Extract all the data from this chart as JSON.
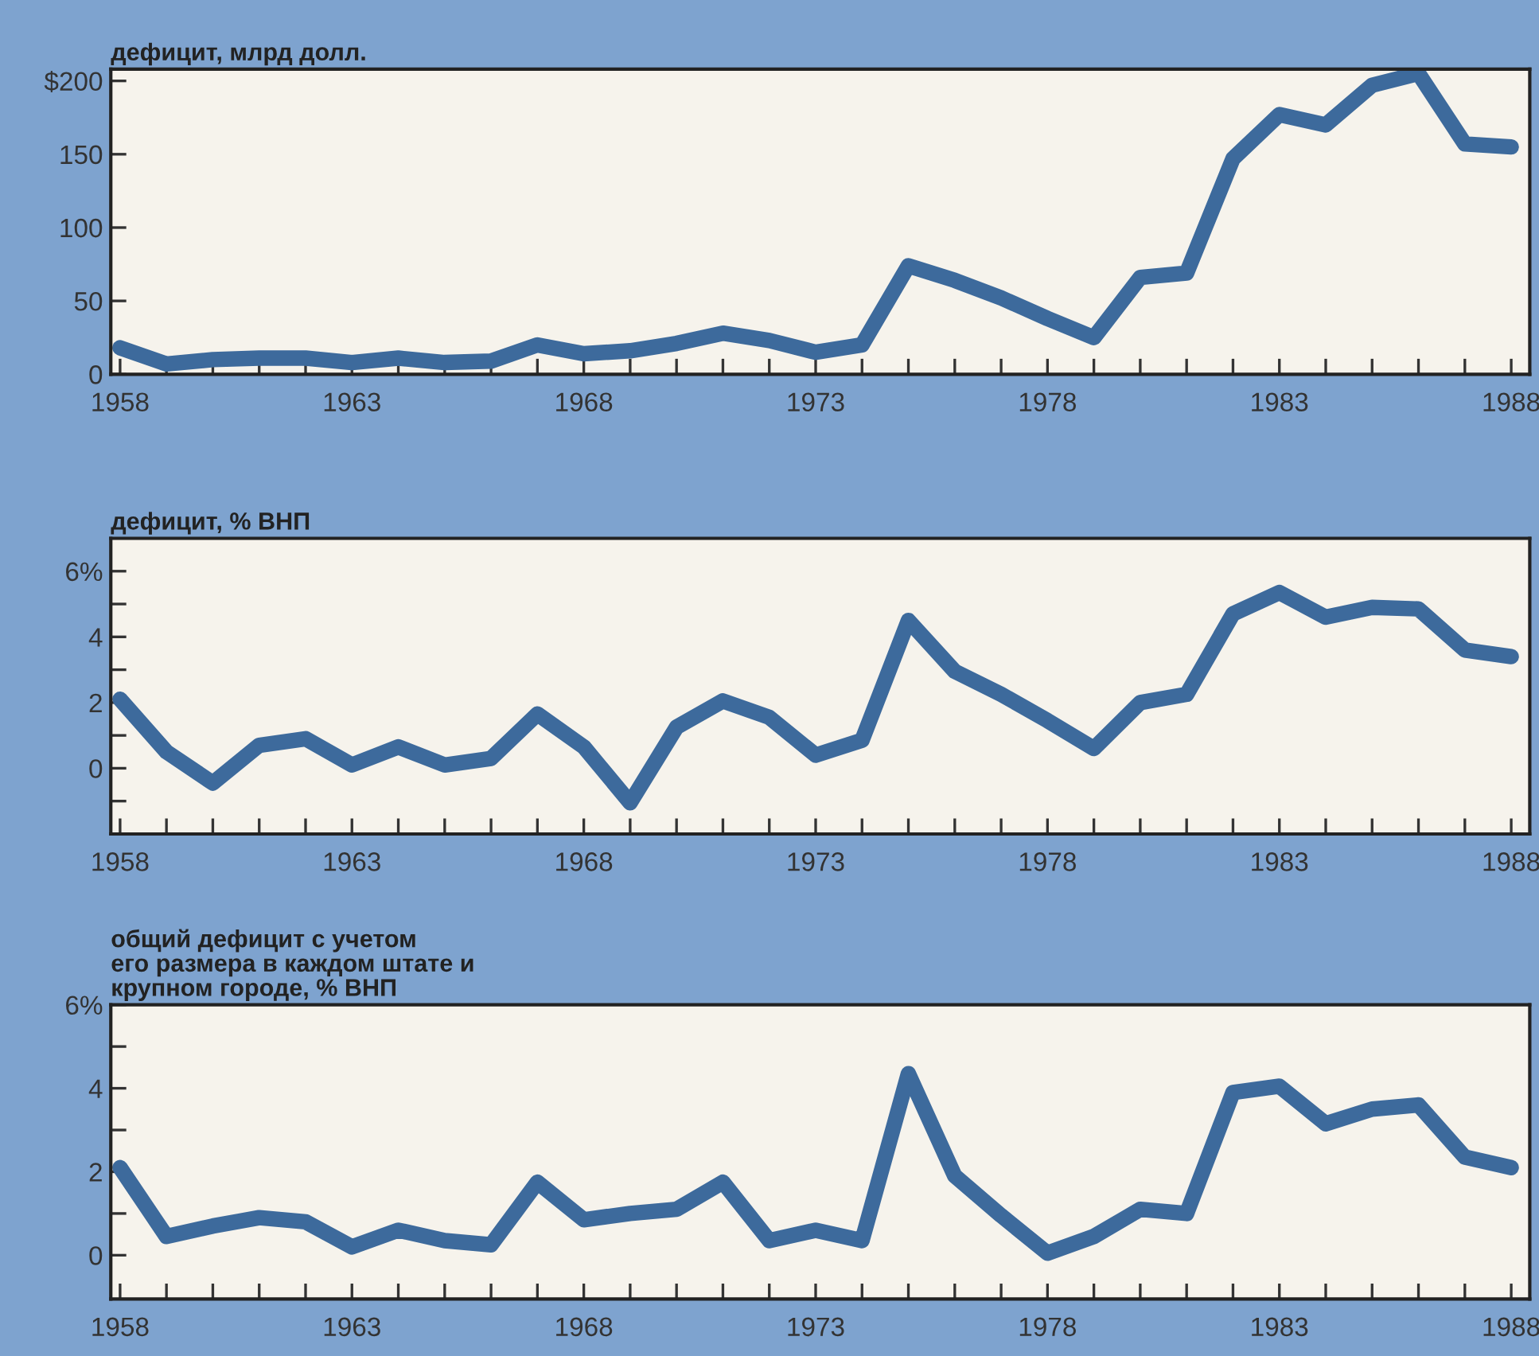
{
  "chart_data": [
    {
      "type": "line",
      "title": "дефицит, млрд долл.",
      "color": "#3d6a9c",
      "x": [
        1958,
        1959,
        1960,
        1961,
        1962,
        1963,
        1964,
        1965,
        1966,
        1967,
        1968,
        1969,
        1970,
        1971,
        1972,
        1973,
        1974,
        1975,
        1976,
        1977,
        1978,
        1979,
        1980,
        1981,
        1982,
        1983,
        1984,
        1985,
        1986,
        1987,
        1988
      ],
      "values": [
        18,
        7,
        10,
        11,
        11,
        8,
        11,
        8,
        9,
        20,
        14,
        16,
        21,
        28,
        23,
        15,
        20,
        74,
        64,
        52,
        38,
        25,
        66,
        69,
        147,
        177,
        170,
        197,
        205,
        157,
        155
      ],
      "xlim": [
        1957.8,
        1988.4
      ],
      "ylim": [
        0,
        208
      ],
      "xticks": [
        1958,
        {
          "value": 1959,
          "label": null
        },
        {
          "value": 1960,
          "label": null
        },
        {
          "value": 1961,
          "label": null
        },
        {
          "value": 1962,
          "label": null
        },
        1963,
        {
          "value": 1964,
          "label": null
        },
        {
          "value": 1965,
          "label": null
        },
        {
          "value": 1966,
          "label": null
        },
        {
          "value": 1967,
          "label": null
        },
        1968,
        {
          "value": 1969,
          "label": null
        },
        {
          "value": 1970,
          "label": null
        },
        {
          "value": 1971,
          "label": null
        },
        {
          "value": 1972,
          "label": null
        },
        1973,
        {
          "value": 1974,
          "label": null
        },
        {
          "value": 1975,
          "label": null
        },
        {
          "value": 1976,
          "label": null
        },
        {
          "value": 1977,
          "label": null
        },
        1978,
        {
          "value": 1979,
          "label": null
        },
        {
          "value": 1980,
          "label": null
        },
        {
          "value": 1981,
          "label": null
        },
        {
          "value": 1982,
          "label": null
        },
        1983,
        {
          "value": 1984,
          "label": null
        },
        {
          "value": 1985,
          "label": null
        },
        {
          "value": 1986,
          "label": null
        },
        {
          "value": 1987,
          "label": null
        },
        1988
      ],
      "yticks": [
        0,
        50,
        100,
        150,
        {
          "value": 200,
          "label": "$200"
        }
      ],
      "grid": false,
      "legend": false,
      "marker": "none",
      "line_style": "solid"
    },
    {
      "type": "line",
      "title": "дефицит, % ВНП",
      "color": "#3d6a9c",
      "x": [
        1958,
        1959,
        1960,
        1961,
        1962,
        1963,
        1964,
        1965,
        1966,
        1967,
        1968,
        1969,
        1970,
        1971,
        1972,
        1973,
        1974,
        1975,
        1976,
        1977,
        1978,
        1979,
        1980,
        1981,
        1982,
        1983,
        1984,
        1985,
        1986,
        1987,
        1988
      ],
      "values": [
        2.1,
        0.5,
        -0.45,
        0.7,
        0.9,
        0.1,
        0.65,
        0.1,
        0.3,
        1.65,
        0.65,
        -1.05,
        1.25,
        2.05,
        1.55,
        0.4,
        0.85,
        4.5,
        2.95,
        2.25,
        1.45,
        0.6,
        2.0,
        2.25,
        4.7,
        5.35,
        4.6,
        4.9,
        4.85,
        3.6,
        3.4
      ],
      "xlim": [
        1957.8,
        1988.4
      ],
      "ylim": [
        -2,
        7
      ],
      "xticks": [
        1958,
        {
          "value": 1959,
          "label": null
        },
        {
          "value": 1960,
          "label": null
        },
        {
          "value": 1961,
          "label": null
        },
        {
          "value": 1962,
          "label": null
        },
        1963,
        {
          "value": 1964,
          "label": null
        },
        {
          "value": 1965,
          "label": null
        },
        {
          "value": 1966,
          "label": null
        },
        {
          "value": 1967,
          "label": null
        },
        1968,
        {
          "value": 1969,
          "label": null
        },
        {
          "value": 1970,
          "label": null
        },
        {
          "value": 1971,
          "label": null
        },
        {
          "value": 1972,
          "label": null
        },
        1973,
        {
          "value": 1974,
          "label": null
        },
        {
          "value": 1975,
          "label": null
        },
        {
          "value": 1976,
          "label": null
        },
        {
          "value": 1977,
          "label": null
        },
        1978,
        {
          "value": 1979,
          "label": null
        },
        {
          "value": 1980,
          "label": null
        },
        {
          "value": 1981,
          "label": null
        },
        {
          "value": 1982,
          "label": null
        },
        1983,
        {
          "value": 1984,
          "label": null
        },
        {
          "value": 1985,
          "label": null
        },
        {
          "value": 1986,
          "label": null
        },
        {
          "value": 1987,
          "label": null
        },
        1988
      ],
      "yticks": [
        {
          "value": -1,
          "label": null
        },
        0,
        {
          "value": 1,
          "label": null
        },
        2,
        {
          "value": 3,
          "label": null
        },
        4,
        {
          "value": 5,
          "label": null
        },
        {
          "value": 6,
          "label": "6%"
        }
      ],
      "grid": false,
      "legend": false,
      "marker": "none",
      "line_style": "solid"
    },
    {
      "type": "line",
      "title": "общий дефицит с учетом\nего размера в каждом штате и\nкрупном городе, % ВНП",
      "color": "#3d6a9c",
      "x": [
        1958,
        1959,
        1960,
        1961,
        1962,
        1963,
        1964,
        1965,
        1966,
        1967,
        1968,
        1969,
        1970,
        1971,
        1972,
        1973,
        1974,
        1975,
        1976,
        1977,
        1978,
        1979,
        1980,
        1981,
        1982,
        1983,
        1984,
        1985,
        1986,
        1987,
        1988
      ],
      "values": [
        2.1,
        0.45,
        0.7,
        0.9,
        0.8,
        0.2,
        0.6,
        0.35,
        0.25,
        1.75,
        0.85,
        1.0,
        1.1,
        1.75,
        0.35,
        0.6,
        0.35,
        4.35,
        1.9,
        0.95,
        0.05,
        0.45,
        1.1,
        1.0,
        3.9,
        4.05,
        3.15,
        3.5,
        3.6,
        2.35,
        2.1
      ],
      "xlim": [
        1957.8,
        1988.4
      ],
      "ylim": [
        -1.05,
        6
      ],
      "xticks": [
        1958,
        {
          "value": 1959,
          "label": null
        },
        {
          "value": 1960,
          "label": null
        },
        {
          "value": 1961,
          "label": null
        },
        {
          "value": 1962,
          "label": null
        },
        1963,
        {
          "value": 1964,
          "label": null
        },
        {
          "value": 1965,
          "label": null
        },
        {
          "value": 1966,
          "label": null
        },
        {
          "value": 1967,
          "label": null
        },
        1968,
        {
          "value": 1969,
          "label": null
        },
        {
          "value": 1970,
          "label": null
        },
        {
          "value": 1971,
          "label": null
        },
        {
          "value": 1972,
          "label": null
        },
        1973,
        {
          "value": 1974,
          "label": null
        },
        {
          "value": 1975,
          "label": null
        },
        {
          "value": 1976,
          "label": null
        },
        {
          "value": 1977,
          "label": null
        },
        1978,
        {
          "value": 1979,
          "label": null
        },
        {
          "value": 1980,
          "label": null
        },
        {
          "value": 1981,
          "label": null
        },
        {
          "value": 1982,
          "label": null
        },
        1983,
        {
          "value": 1984,
          "label": null
        },
        {
          "value": 1985,
          "label": null
        },
        {
          "value": 1986,
          "label": null
        },
        {
          "value": 1987,
          "label": null
        },
        1988
      ],
      "yticks": [
        0,
        {
          "value": 1,
          "label": null
        },
        2,
        {
          "value": 3,
          "label": null
        },
        4,
        {
          "value": 5,
          "label": null
        },
        {
          "value": 6,
          "label": "6%"
        }
      ],
      "grid": false,
      "legend": false,
      "marker": "none",
      "line_style": "solid"
    }
  ]
}
